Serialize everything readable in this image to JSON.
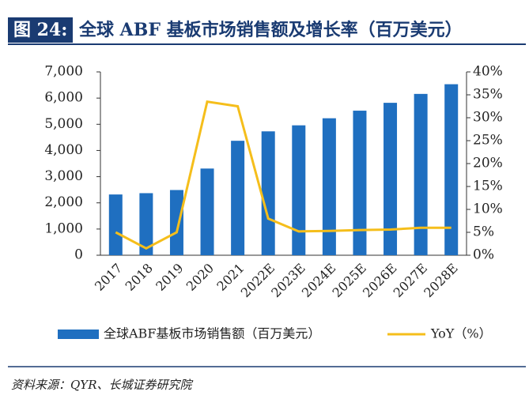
{
  "chart_data": {
    "type": "bar_line",
    "figure_label": "图 24:",
    "title": "全球 ABF 基板市场销售额及增长率（百万美元）",
    "source": "资料来源：QYR、长城证券研究院",
    "categories": [
      "2017",
      "2018",
      "2019",
      "2020",
      "2021",
      "2022E",
      "2023E",
      "2024E",
      "2025E",
      "2026E",
      "2027E",
      "2028E"
    ],
    "series": [
      {
        "name": "全球ABF基板市场销售额（百万美元）",
        "type": "bar",
        "color": "#1f6fc0",
        "values": [
          2320,
          2370,
          2490,
          3310,
          4370,
          4730,
          4960,
          5230,
          5520,
          5820,
          6160,
          6530
        ]
      },
      {
        "name": "YoY（%）",
        "type": "line",
        "axis": "y2",
        "color": "#f5be1b",
        "values": [
          5.0,
          1.5,
          5.0,
          33.5,
          32.5,
          8.0,
          5.2,
          5.3,
          5.5,
          5.6,
          6.0,
          6.0
        ]
      }
    ],
    "ylim": [
      0,
      7000
    ],
    "yticks": [
      0,
      {
        "value": 1000,
        "label": "1,000"
      },
      {
        "value": 2000,
        "label": "2,000"
      },
      {
        "value": 3000,
        "label": "3,000"
      },
      {
        "value": 4000,
        "label": "4,000"
      },
      {
        "value": 5000,
        "label": "5,000"
      },
      {
        "value": 6000,
        "label": "6,000"
      },
      {
        "value": 7000,
        "label": "7,000"
      }
    ],
    "y2lim": [
      0,
      40
    ],
    "y2ticks": [
      {
        "value": 0,
        "label": "0%"
      },
      {
        "value": 5,
        "label": "5%"
      },
      {
        "value": 10,
        "label": "10%"
      },
      {
        "value": 15,
        "label": "15%"
      },
      {
        "value": 20,
        "label": "20%"
      },
      {
        "value": 25,
        "label": "25%"
      },
      {
        "value": 30,
        "label": "30%"
      },
      {
        "value": 35,
        "label": "35%"
      },
      {
        "value": 40,
        "label": "40%"
      }
    ]
  }
}
